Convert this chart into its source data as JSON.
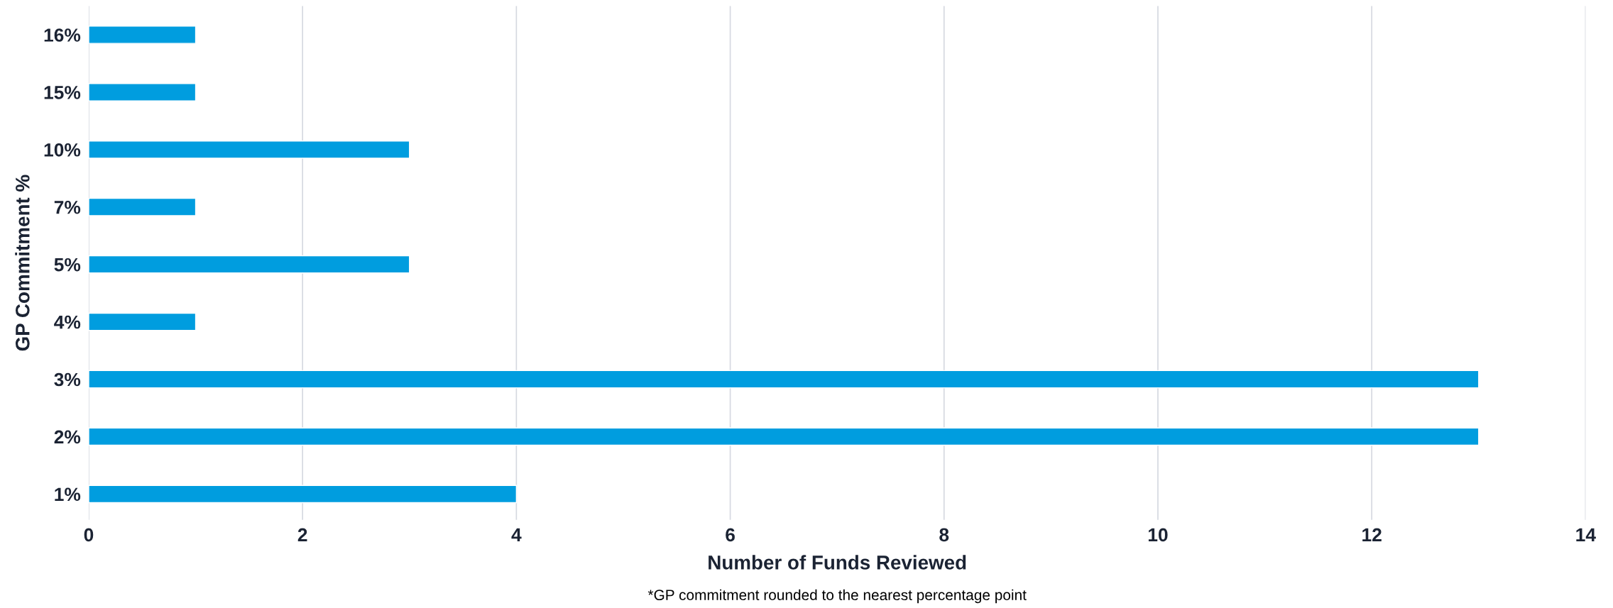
{
  "chart_data": {
    "type": "bar",
    "orientation": "horizontal",
    "categories": [
      "16%",
      "15%",
      "10%",
      "7%",
      "5%",
      "4%",
      "3%",
      "2%",
      "1%"
    ],
    "values": [
      1,
      1,
      3,
      1,
      3,
      1,
      13,
      13,
      4
    ],
    "color": "#009ddf",
    "xlabel": "Number of Funds Reviewed",
    "ylabel": "GP Commitment %",
    "xlim": [
      0,
      14
    ],
    "xticks": [
      0,
      2,
      4,
      6,
      8,
      10,
      12,
      14
    ],
    "grid": "x",
    "legend": false,
    "annotations": [
      "*GP commitment rounded to the nearest percentage point"
    ]
  }
}
